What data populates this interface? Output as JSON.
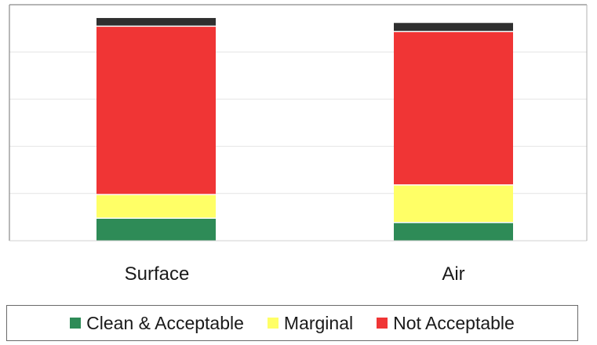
{
  "chart_data": {
    "type": "bar",
    "stacked": true,
    "categories": [
      "Surface",
      "Air"
    ],
    "series": [
      {
        "name": "Clean & Acceptable",
        "color": "#2e8b57",
        "values": [
          10.5,
          8.5
        ]
      },
      {
        "name": "Marginal",
        "color": "#ffff66",
        "values": [
          11.0,
          17.5
        ]
      },
      {
        "name": "Not Acceptable",
        "color": "#f03535",
        "values": [
          78.5,
          71.5
        ]
      },
      {
        "color": "#2f2f2f",
        "values": [
          3.8,
          4.0
        ]
      }
    ],
    "title": "",
    "xlabel": "",
    "ylabel": "",
    "ylim": [
      0,
      110
    ],
    "grid": true,
    "legend_position": "bottom"
  }
}
